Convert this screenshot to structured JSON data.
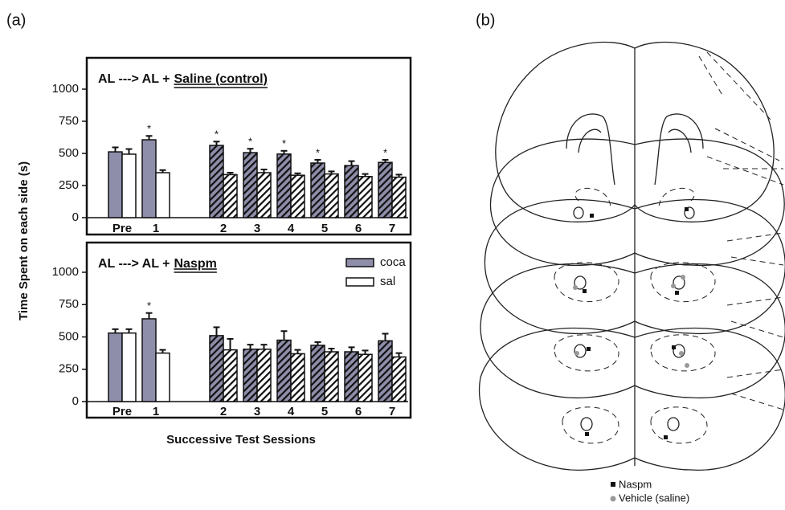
{
  "panels": {
    "a": "(a)",
    "b": "(b)"
  },
  "ylabel": "Time Spent on each side (s)",
  "xlabel": "Successive Test Sessions",
  "chart_data": [
    {
      "type": "bar",
      "title_prefix": "AL ---> AL +",
      "title_emphasis": "Saline (control)",
      "categories": [
        "Pre",
        "1",
        null,
        "2",
        "3",
        "4",
        "5",
        "6",
        "7"
      ],
      "hatched": [
        false,
        false,
        false,
        true,
        true,
        true,
        true,
        true,
        true
      ],
      "series": [
        {
          "color": "#8e8eab",
          "values": [
            512,
            606,
            null,
            562,
            506,
            495,
            425,
            405,
            430
          ],
          "errors": [
            35,
            30,
            null,
            30,
            30,
            25,
            25,
            35,
            20
          ],
          "markers": [
            null,
            "*",
            null,
            "*",
            "*",
            "*",
            "*",
            null,
            "*"
          ]
        },
        {
          "color": "#ffffff",
          "values": [
            494,
            350,
            null,
            335,
            350,
            330,
            340,
            320,
            315
          ],
          "errors": [
            40,
            20,
            null,
            15,
            25,
            15,
            20,
            20,
            20
          ]
        }
      ],
      "ylim": [
        0,
        1000
      ],
      "yticks": [
        0,
        250,
        500,
        750,
        1000
      ]
    },
    {
      "type": "bar",
      "title_prefix": "AL ---> AL +",
      "title_emphasis": "Naspm",
      "categories": [
        "Pre",
        "1",
        null,
        "2",
        "3",
        "4",
        "5",
        "6",
        "7"
      ],
      "hatched": [
        false,
        false,
        false,
        true,
        true,
        true,
        true,
        true,
        true
      ],
      "series": [
        {
          "name": "coca",
          "color": "#8e8eab",
          "values": [
            530,
            640,
            null,
            510,
            405,
            475,
            435,
            385,
            470
          ],
          "errors": [
            30,
            45,
            null,
            65,
            35,
            70,
            25,
            35,
            55
          ],
          "markers": [
            null,
            "*",
            null,
            null,
            null,
            null,
            null,
            null,
            null
          ]
        },
        {
          "name": "sal",
          "color": "#ffffff",
          "values": [
            530,
            375,
            null,
            400,
            405,
            370,
            385,
            365,
            345
          ],
          "errors": [
            30,
            25,
            null,
            85,
            35,
            30,
            25,
            30,
            30
          ]
        }
      ],
      "ylim": [
        0,
        1000
      ],
      "yticks": [
        0,
        250,
        500,
        750,
        1000
      ],
      "legend": "upper right"
    }
  ],
  "atlas_legend": {
    "naspm": "Naspm",
    "vehicle": "Vehicle (saline)"
  }
}
